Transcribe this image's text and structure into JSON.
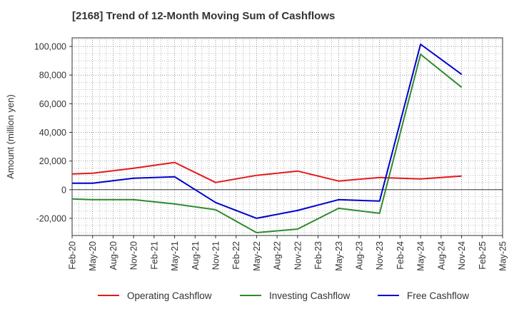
{
  "chart_data": {
    "type": "line",
    "title": "[2168]  Trend of 12-Month Moving Sum of Cashflows",
    "xlabel": "",
    "ylabel": "Amount (million yen)",
    "categories": [
      "Feb-20",
      "May-20",
      "Aug-20",
      "Nov-20",
      "Feb-21",
      "May-21",
      "Aug-21",
      "Nov-21",
      "Feb-22",
      "May-22",
      "Aug-22",
      "Nov-22",
      "Feb-23",
      "May-23",
      "Aug-23",
      "Nov-23",
      "Feb-24",
      "May-24",
      "Aug-24",
      "Nov-24",
      "Feb-25",
      "May-25"
    ],
    "ylim": [
      -32000,
      106000
    ],
    "yticks": [
      -20000,
      0,
      20000,
      40000,
      60000,
      80000,
      100000
    ],
    "ytick_labels": [
      "-20,000",
      "0",
      "20,000",
      "40,000",
      "60,000",
      "80,000",
      "100,000"
    ],
    "grid": true,
    "legend_position": "bottom",
    "series": [
      {
        "name": "Operating Cashflow",
        "color": "#e31a1c",
        "values": [
          11000,
          11500,
          null,
          15000,
          null,
          19000,
          null,
          5000,
          null,
          10000,
          null,
          13000,
          null,
          6000,
          null,
          8500,
          null,
          7500,
          null,
          9500,
          null,
          null
        ]
      },
      {
        "name": "Investing Cashflow",
        "color": "#2e8b2e",
        "values": [
          -6500,
          -7000,
          null,
          -7000,
          null,
          -10000,
          null,
          -14000,
          null,
          -30000,
          null,
          -27500,
          null,
          -13000,
          null,
          -16500,
          null,
          94500,
          null,
          71500,
          null,
          null
        ]
      },
      {
        "name": "Free Cashflow",
        "color": "#0000cc",
        "values": [
          4500,
          4500,
          null,
          8000,
          null,
          9000,
          null,
          -9000,
          null,
          -20000,
          null,
          -14500,
          null,
          -7000,
          null,
          -8000,
          null,
          101500,
          null,
          80500,
          null,
          null
        ]
      }
    ]
  }
}
